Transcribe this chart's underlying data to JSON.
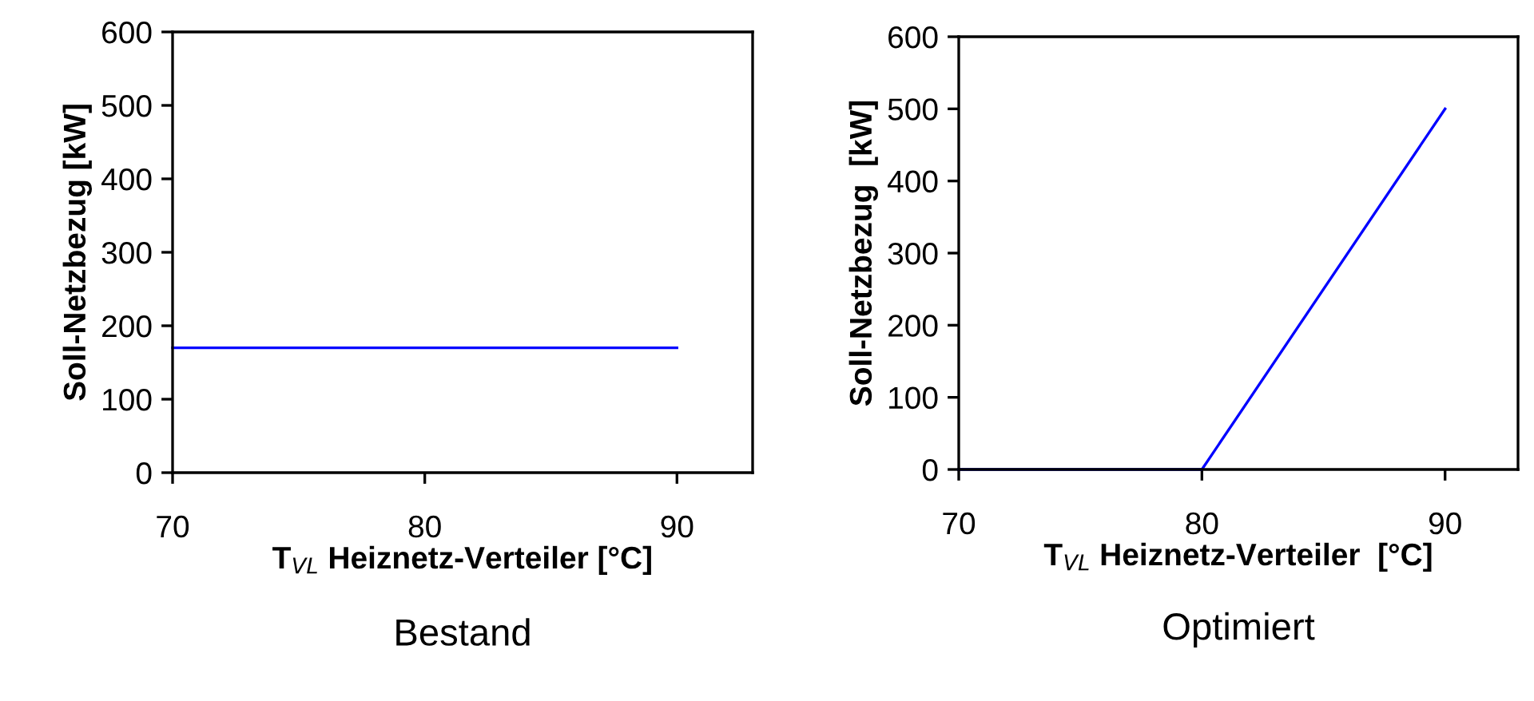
{
  "chart_data": [
    {
      "type": "line",
      "xlabel": "T$_{VL}$ Heiznetz-Verteiler [°C]",
      "ylabel": "Soll-Netzbezug [kW]",
      "annotations": [
        "Bestand"
      ],
      "x": [
        70,
        90
      ],
      "series": [
        {
          "color": "#0000ff",
          "values": [
            170,
            170
          ]
        }
      ],
      "xlim": [
        70,
        93
      ],
      "xticks": [
        70,
        80,
        90
      ],
      "ylim": [
        0,
        600
      ],
      "yticks": [
        0,
        100,
        200,
        300,
        400,
        500,
        600
      ],
      "grid": false,
      "legend": false
    },
    {
      "type": "line",
      "xlabel": "T$_{VL}$ Heiznetz-Verteiler  [°C]",
      "ylabel": "Soll-Netzbezug  [kW]",
      "annotations": [
        "Optimiert"
      ],
      "x": [
        70,
        80,
        90
      ],
      "series": [
        {
          "color": "#0000ff",
          "values": [
            0,
            0,
            500
          ]
        }
      ],
      "xlim": [
        70,
        93
      ],
      "xticks": [
        70,
        80,
        90
      ],
      "ylim": [
        0,
        600
      ],
      "yticks": [
        0,
        100,
        200,
        300,
        400,
        500,
        600
      ],
      "grid": false,
      "legend": false
    }
  ]
}
